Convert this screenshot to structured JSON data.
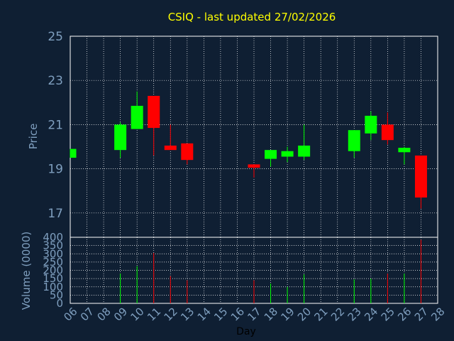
{
  "chart_data": {
    "type": "candlestick",
    "title": "CSIQ - last updated 27/02/2026",
    "xlabel": "Day",
    "ylabel": "Price",
    "volume_label": "Volume (0000)",
    "x_ticks": [
      "06",
      "07",
      "08",
      "09",
      "10",
      "11",
      "12",
      "13",
      "14",
      "15",
      "16",
      "17",
      "18",
      "19",
      "20",
      "21",
      "22",
      "23",
      "24",
      "25",
      "26",
      "27",
      "28"
    ],
    "price_ticks": [
      25,
      23,
      21,
      19,
      17
    ],
    "price_ylim": [
      15.9,
      25
    ],
    "volume_ticks": [
      400,
      350,
      300,
      250,
      200,
      150,
      100,
      50,
      0
    ],
    "volume_ylim": [
      0,
      400
    ],
    "grid": true,
    "colors": {
      "up": "#00ff00",
      "down": "#ff0000",
      "background": "#0f1f33",
      "grid": "#ffffff",
      "title": "#ffff00",
      "axis_text": "#7f9fbf"
    },
    "candles": [
      {
        "day": "06",
        "open": 19.5,
        "close": 19.9,
        "high": 19.9,
        "low": 19.5,
        "volume": 0
      },
      {
        "day": "09",
        "open": 19.85,
        "close": 21.0,
        "high": 21.1,
        "low": 19.5,
        "volume": 180
      },
      {
        "day": "10",
        "open": 20.8,
        "close": 21.85,
        "high": 22.5,
        "low": 20.8,
        "volume": 225
      },
      {
        "day": "11",
        "open": 22.3,
        "close": 20.85,
        "high": 22.3,
        "low": 19.6,
        "volume": 305
      },
      {
        "day": "12",
        "open": 20.05,
        "close": 19.85,
        "high": 21.0,
        "low": 19.85,
        "volume": 165
      },
      {
        "day": "13",
        "open": 20.15,
        "close": 19.4,
        "high": 20.15,
        "low": 19.2,
        "volume": 140
      },
      {
        "day": "17",
        "open": 19.2,
        "close": 19.05,
        "high": 19.2,
        "low": 18.6,
        "volume": 140
      },
      {
        "day": "18",
        "open": 19.45,
        "close": 19.85,
        "high": 19.85,
        "low": 19.1,
        "volume": 120
      },
      {
        "day": "19",
        "open": 19.55,
        "close": 19.8,
        "high": 20.0,
        "low": 19.3,
        "volume": 100
      },
      {
        "day": "20",
        "open": 19.55,
        "close": 20.05,
        "high": 21.0,
        "low": 19.4,
        "volume": 175
      },
      {
        "day": "23",
        "open": 19.8,
        "close": 20.75,
        "high": 20.75,
        "low": 19.5,
        "volume": 145
      },
      {
        "day": "24",
        "open": 20.6,
        "close": 21.4,
        "high": 21.6,
        "low": 20.3,
        "volume": 150
      },
      {
        "day": "25",
        "open": 21.0,
        "close": 20.3,
        "high": 21.55,
        "low": 20.1,
        "volume": 180
      },
      {
        "day": "26",
        "open": 19.75,
        "close": 19.95,
        "high": 20.0,
        "low": 19.2,
        "volume": 180
      },
      {
        "day": "27",
        "open": 19.6,
        "close": 17.7,
        "high": 19.6,
        "low": 17.2,
        "volume": 385
      }
    ]
  }
}
